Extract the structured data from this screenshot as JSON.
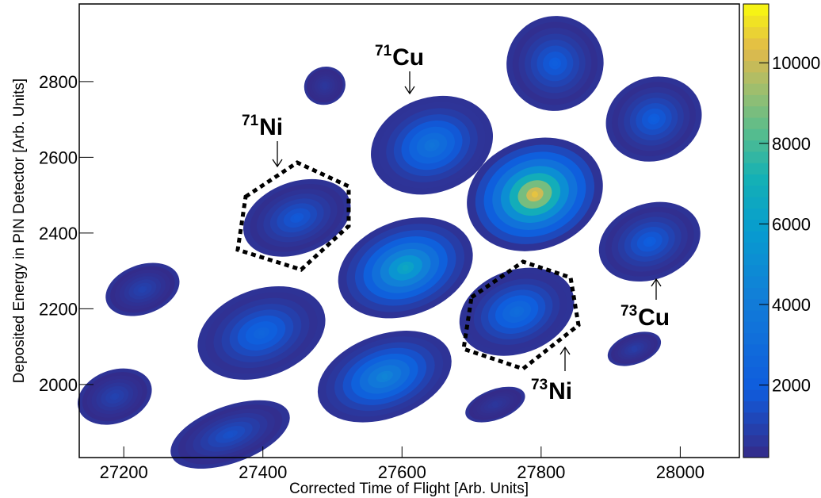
{
  "chart_data": {
    "type": "heatmap",
    "x_label": "Corrected Time of Flight [Arb. Units]",
    "y_label": "Deposited Energy in PIN Detector [Arb. Units]",
    "xlim": [
      27136,
      28085
    ],
    "xticks": [
      27200,
      27400,
      27600,
      27800,
      28000
    ],
    "ylim": [
      1807,
      3005
    ],
    "yticks": [
      2000,
      2200,
      2400,
      2600,
      2800
    ],
    "zlim": [
      200,
      11460
    ],
    "zticks": [
      2000,
      4000,
      6000,
      8000,
      10000
    ],
    "blobs": [
      {
        "x": 27227,
        "y": 2251,
        "peak": 1000,
        "width": 110,
        "height": 130
      },
      {
        "x": 27398,
        "y": 2136,
        "peak": 2500,
        "width": 190,
        "height": 230
      },
      {
        "x": 27187,
        "y": 1968,
        "peak": 1000,
        "width": 110,
        "height": 140
      },
      {
        "x": 27353,
        "y": 1868,
        "peak": 1500,
        "width": 180,
        "height": 150
      },
      {
        "x": 27449,
        "y": 2440,
        "peak": 1800,
        "width": 160,
        "height": 190
      },
      {
        "x": 27489,
        "y": 2789,
        "peak": 600,
        "width": 60,
        "height": 100
      },
      {
        "x": 27605,
        "y": 2308,
        "peak": 6500,
        "width": 200,
        "height": 250
      },
      {
        "x": 27575,
        "y": 2021,
        "peak": 4500,
        "width": 200,
        "height": 220
      },
      {
        "x": 27643,
        "y": 2632,
        "peak": 3500,
        "width": 180,
        "height": 250
      },
      {
        "x": 27791,
        "y": 2502,
        "peak": 10500,
        "width": 200,
        "height": 290
      },
      {
        "x": 27765,
        "y": 2192,
        "peak": 3000,
        "width": 170,
        "height": 220
      },
      {
        "x": 27820,
        "y": 2848,
        "peak": 2000,
        "width": 140,
        "height": 250
      },
      {
        "x": 27962,
        "y": 2701,
        "peak": 2000,
        "width": 140,
        "height": 220
      },
      {
        "x": 27956,
        "y": 2377,
        "peak": 2000,
        "width": 150,
        "height": 200
      },
      {
        "x": 27934,
        "y": 2094,
        "peak": 800,
        "width": 80,
        "height": 80
      },
      {
        "x": 27734,
        "y": 1947,
        "peak": 600,
        "width": 90,
        "height": 80
      }
    ],
    "annotations": [
      {
        "mass": "71",
        "element": "Cu"
      },
      {
        "mass": "71",
        "element": "Ni"
      },
      {
        "mass": "73",
        "element": "Cu"
      },
      {
        "mass": "73",
        "element": "Ni"
      }
    ]
  }
}
